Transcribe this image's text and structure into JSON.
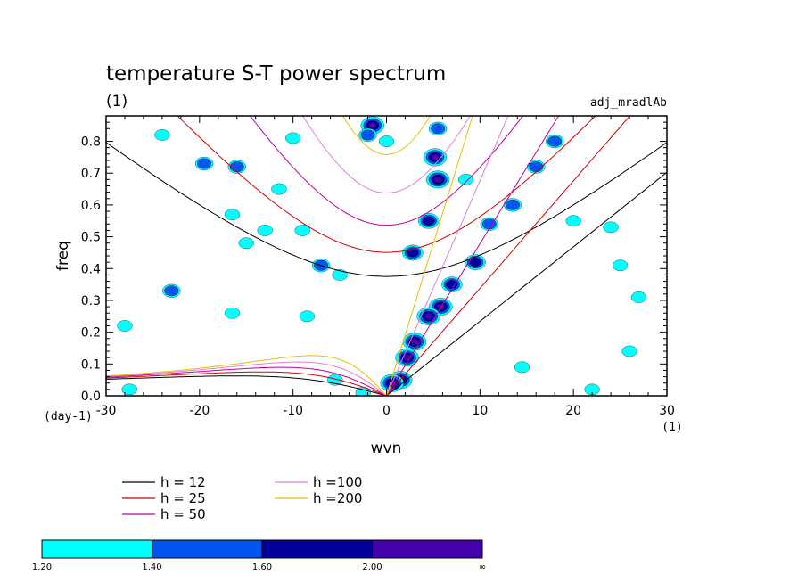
{
  "chart_data": {
    "type": "line",
    "title": "temperature S-T power spectrum",
    "subtitle": "(1)",
    "tag": "adj_mradlAb",
    "xlabel": "wvn",
    "ylabel": "freq",
    "x_unit": "(1)",
    "y_unit": "(day-1)",
    "xlim": [
      -30,
      30
    ],
    "ylim": [
      0,
      0.88
    ],
    "xticks": [
      -30,
      -20,
      -10,
      0,
      10,
      20,
      30
    ],
    "xtick_labels": [
      "-30",
      "-20",
      "-10",
      "0",
      "10",
      "20",
      "30"
    ],
    "yticks": [
      0.0,
      0.1,
      0.2,
      0.3,
      0.4,
      0.5,
      0.6,
      0.7,
      0.8
    ],
    "ytick_labels": [
      "0.0",
      "0.1",
      "0.2",
      "0.3",
      "0.4",
      "0.5",
      "0.6",
      "0.7",
      "0.8"
    ],
    "grid": false,
    "legend_position": "bottom-left",
    "series": [
      {
        "name": "h = 12",
        "color": "#000000",
        "h": 12
      },
      {
        "name": "h = 25",
        "color": "#d40000",
        "h": 25
      },
      {
        "name": "h = 50",
        "color": "#c000a0",
        "h": 50
      },
      {
        "name": "h =100",
        "color": "#e080e0",
        "h": 100
      },
      {
        "name": "h =200",
        "color": "#e8c000",
        "h": 200
      }
    ],
    "power_blobs": [
      {
        "x": 5.5,
        "y": 0.68,
        "level": 4
      },
      {
        "x": 5.2,
        "y": 0.75,
        "level": 4
      },
      {
        "x": 4.5,
        "y": 0.55,
        "level": 3
      },
      {
        "x": 2.8,
        "y": 0.45,
        "level": 3
      },
      {
        "x": 5.8,
        "y": 0.28,
        "level": 4
      },
      {
        "x": 4.5,
        "y": 0.25,
        "level": 4
      },
      {
        "x": 7.0,
        "y": 0.35,
        "level": 3
      },
      {
        "x": 9.5,
        "y": 0.42,
        "level": 3
      },
      {
        "x": 3.0,
        "y": 0.17,
        "level": 4
      },
      {
        "x": 2.2,
        "y": 0.12,
        "level": 4
      },
      {
        "x": 1.5,
        "y": 0.05,
        "level": 4
      },
      {
        "x": 0.6,
        "y": 0.04,
        "level": 4
      },
      {
        "x": 5.5,
        "y": 0.84,
        "level": 2
      },
      {
        "x": -1.5,
        "y": 0.85,
        "level": 4
      },
      {
        "x": -2.0,
        "y": 0.82,
        "level": 2
      },
      {
        "x": 11.0,
        "y": 0.54,
        "level": 2
      },
      {
        "x": 13.5,
        "y": 0.6,
        "level": 2
      },
      {
        "x": 16.0,
        "y": 0.72,
        "level": 2
      },
      {
        "x": 18.0,
        "y": 0.8,
        "level": 2
      },
      {
        "x": -16.0,
        "y": 0.72,
        "level": 2
      },
      {
        "x": -19.5,
        "y": 0.73,
        "level": 2
      },
      {
        "x": -11.5,
        "y": 0.65,
        "level": 1
      },
      {
        "x": -7.0,
        "y": 0.41,
        "level": 2
      },
      {
        "x": -5.0,
        "y": 0.38,
        "level": 1
      },
      {
        "x": -9.0,
        "y": 0.52,
        "level": 1
      },
      {
        "x": -13.0,
        "y": 0.52,
        "level": 1
      },
      {
        "x": -15.0,
        "y": 0.48,
        "level": 1
      },
      {
        "x": -16.5,
        "y": 0.57,
        "level": 1
      },
      {
        "x": -23.0,
        "y": 0.33,
        "level": 2
      },
      {
        "x": -28.0,
        "y": 0.22,
        "level": 1
      },
      {
        "x": -16.5,
        "y": 0.26,
        "level": 1
      },
      {
        "x": -10.0,
        "y": 0.81,
        "level": 1
      },
      {
        "x": -24.0,
        "y": 0.82,
        "level": 1
      },
      {
        "x": 20.0,
        "y": 0.55,
        "level": 1
      },
      {
        "x": 24.0,
        "y": 0.53,
        "level": 1
      },
      {
        "x": 27.0,
        "y": 0.31,
        "level": 1
      },
      {
        "x": -27.5,
        "y": 0.02,
        "level": 1
      },
      {
        "x": 22.0,
        "y": 0.02,
        "level": 1
      },
      {
        "x": -2.5,
        "y": 0.01,
        "level": 1
      },
      {
        "x": 14.5,
        "y": 0.09,
        "level": 1
      },
      {
        "x": 25.0,
        "y": 0.41,
        "level": 1
      },
      {
        "x": -8.5,
        "y": 0.25,
        "level": 1
      },
      {
        "x": 0.0,
        "y": 0.8,
        "level": 1
      },
      {
        "x": 8.5,
        "y": 0.68,
        "level": 1
      },
      {
        "x": 26.0,
        "y": 0.14,
        "level": 1
      },
      {
        "x": -5.5,
        "y": 0.05,
        "level": 1
      }
    ],
    "colorbar": {
      "labels": [
        "1.20",
        "1.40",
        "1.60",
        "2.00",
        "∞"
      ],
      "colors": [
        "#00ffff",
        "#0055ee",
        "#000099",
        "#4400aa"
      ]
    }
  }
}
